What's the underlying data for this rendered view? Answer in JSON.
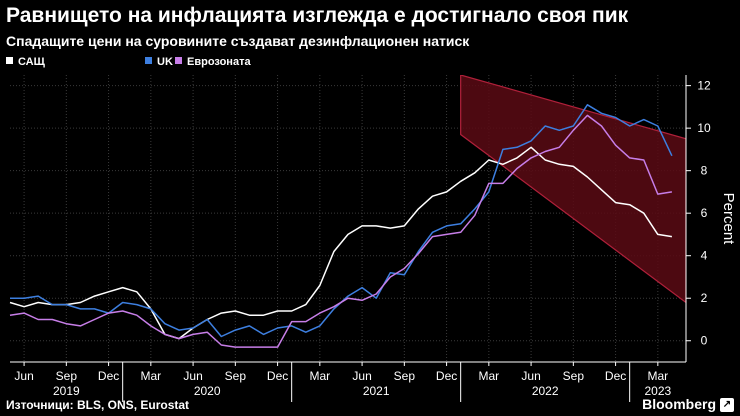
{
  "header": {
    "title": "Равнището на инфлацията изглежда е достигнало своя пик",
    "subtitle": "Спадащите цени на суровините създават дезинфлационен натиск"
  },
  "footer": {
    "source": "Източници: BLS, ONS, Eurostat",
    "brand": "Bloomberg"
  },
  "colors": {
    "background": "#000000",
    "usa": "#ffffff",
    "uk": "#3d7fe0",
    "eurozone": "#c77ee8",
    "band_fill": "#5a0a14",
    "band_edge": "#b0203a"
  },
  "chart_data": {
    "type": "line",
    "title": "",
    "xlabel": "",
    "ylabel": "Percent",
    "ylim": [
      -1,
      12.5
    ],
    "yticks": [
      "0",
      "2",
      "4",
      "6",
      "8",
      "10",
      "12"
    ],
    "xlim": [
      "2019-05",
      "2023-05"
    ],
    "xticks": [
      {
        "date": "2019-06",
        "label": "Jun"
      },
      {
        "date": "2019-09",
        "label": "Sep"
      },
      {
        "date": "2019-12",
        "label": "Dec"
      },
      {
        "date": "2020-03",
        "label": "Mar"
      },
      {
        "date": "2020-06",
        "label": "Jun"
      },
      {
        "date": "2020-09",
        "label": "Sep"
      },
      {
        "date": "2020-12",
        "label": "Dec"
      },
      {
        "date": "2021-03",
        "label": "Mar"
      },
      {
        "date": "2021-06",
        "label": "Jun"
      },
      {
        "date": "2021-09",
        "label": "Sep"
      },
      {
        "date": "2021-12",
        "label": "Dec"
      },
      {
        "date": "2022-03",
        "label": "Mar"
      },
      {
        "date": "2022-06",
        "label": "Jun"
      },
      {
        "date": "2022-09",
        "label": "Sep"
      },
      {
        "date": "2022-12",
        "label": "Dec"
      },
      {
        "date": "2023-03",
        "label": "Mar"
      }
    ],
    "years": [
      "2019",
      "2020",
      "2021",
      "2022",
      "2023"
    ],
    "grid": true,
    "legend_position": "top-left",
    "x": [
      "2019-05",
      "2019-06",
      "2019-07",
      "2019-08",
      "2019-09",
      "2019-10",
      "2019-11",
      "2019-12",
      "2020-01",
      "2020-02",
      "2020-03",
      "2020-04",
      "2020-05",
      "2020-06",
      "2020-07",
      "2020-08",
      "2020-09",
      "2020-10",
      "2020-11",
      "2020-12",
      "2021-01",
      "2021-02",
      "2021-03",
      "2021-04",
      "2021-05",
      "2021-06",
      "2021-07",
      "2021-08",
      "2021-09",
      "2021-10",
      "2021-11",
      "2021-12",
      "2022-01",
      "2022-02",
      "2022-03",
      "2022-04",
      "2022-05",
      "2022-06",
      "2022-07",
      "2022-08",
      "2022-09",
      "2022-10",
      "2022-11",
      "2022-12",
      "2023-01",
      "2023-02",
      "2023-03",
      "2023-04"
    ],
    "series": [
      {
        "name": "САЩ",
        "color": "#ffffff",
        "values": [
          1.8,
          1.6,
          1.8,
          1.7,
          1.7,
          1.8,
          2.1,
          2.3,
          2.5,
          2.3,
          1.5,
          0.3,
          0.1,
          0.6,
          1.0,
          1.3,
          1.4,
          1.2,
          1.2,
          1.4,
          1.4,
          1.7,
          2.6,
          4.2,
          5.0,
          5.4,
          5.4,
          5.3,
          5.4,
          6.2,
          6.8,
          7.0,
          7.5,
          7.9,
          8.5,
          8.3,
          8.6,
          9.1,
          8.5,
          8.3,
          8.2,
          7.7,
          7.1,
          6.5,
          6.4,
          6.0,
          5.0,
          4.9
        ]
      },
      {
        "name": "UK",
        "color": "#3d7fe0",
        "values": [
          2.0,
          2.0,
          2.1,
          1.7,
          1.7,
          1.5,
          1.5,
          1.3,
          1.8,
          1.7,
          1.5,
          0.8,
          0.5,
          0.6,
          1.0,
          0.2,
          0.5,
          0.7,
          0.3,
          0.6,
          0.7,
          0.4,
          0.7,
          1.5,
          2.1,
          2.5,
          2.0,
          3.2,
          3.1,
          4.2,
          5.1,
          5.4,
          5.5,
          6.2,
          7.0,
          9.0,
          9.1,
          9.4,
          10.1,
          9.9,
          10.1,
          11.1,
          10.7,
          10.5,
          10.1,
          10.4,
          10.1,
          8.7
        ]
      },
      {
        "name": "Еврозоната",
        "color": "#c77ee8",
        "values": [
          1.2,
          1.3,
          1.0,
          1.0,
          0.8,
          0.7,
          1.0,
          1.3,
          1.4,
          1.2,
          0.7,
          0.3,
          0.1,
          0.3,
          0.4,
          -0.2,
          -0.3,
          -0.3,
          -0.3,
          -0.3,
          0.9,
          0.9,
          1.3,
          1.6,
          2.0,
          1.9,
          2.2,
          3.0,
          3.4,
          4.1,
          4.9,
          5.0,
          5.1,
          5.9,
          7.4,
          7.4,
          8.1,
          8.6,
          8.9,
          9.1,
          9.9,
          10.6,
          10.1,
          9.2,
          8.6,
          8.5,
          6.9,
          7.0
        ]
      }
    ],
    "annotation_band": {
      "upper": [
        {
          "x": "2022-01",
          "y": 12.5
        },
        {
          "x": "2023-05",
          "y": 9.5
        }
      ],
      "lower": [
        {
          "x": "2022-01",
          "y": 9.7
        },
        {
          "x": "2023-05",
          "y": 1.8
        }
      ]
    }
  }
}
